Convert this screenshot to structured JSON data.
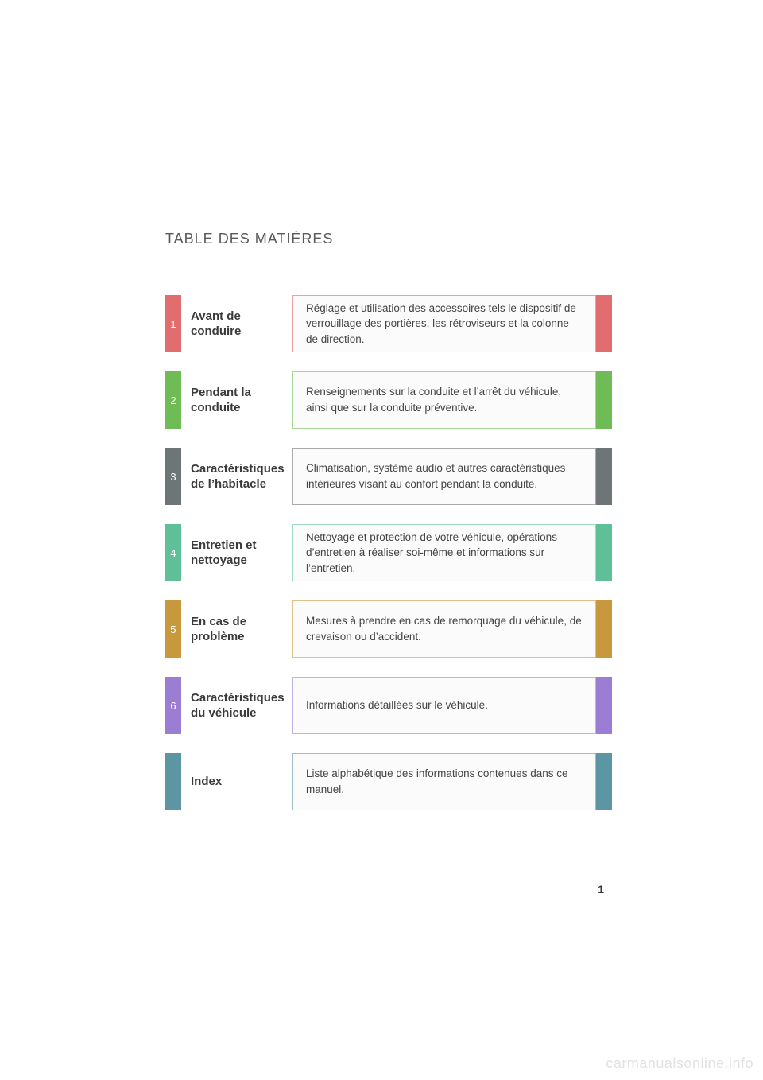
{
  "heading": "TABLE DES MATIÈRES",
  "page_number": "1",
  "watermark": "carmanualsonline.info",
  "rows": [
    {
      "num": "1",
      "title": "Avant de conduire",
      "desc": "Réglage et utilisation des accessoires tels le dispositif de verrouillage des portières, les rétroviseurs et la colonne de direction.",
      "color": "#e26d6e",
      "border": "#e9a1a2"
    },
    {
      "num": "2",
      "title": "Pendant la conduite",
      "desc": "Renseignements sur la conduite et l’arrêt du véhicule, ainsi que sur la conduite préventive.",
      "color": "#6fbb55",
      "border": "#a7d697"
    },
    {
      "num": "3",
      "title": "Caractéristiques de l’habitacle",
      "desc": "Climatisation, système audio et autres caractéristiques intérieures visant au confort pendant la conduite.",
      "color": "#6e7577",
      "border": "#a7abac"
    },
    {
      "num": "4",
      "title": "Entretien et nettoyage",
      "desc": "Nettoyage et protection de votre véhicule, opérations d’entretien à réaliser soi-même et informations sur l’entretien.",
      "color": "#5fbf97",
      "border": "#9ed9c0"
    },
    {
      "num": "5",
      "title": "En cas de problème",
      "desc": "Mesures à prendre en cas de remorquage du véhicule, de crevaison ou d’accident.",
      "color": "#c8983d",
      "border": "#ddc08a"
    },
    {
      "num": "6",
      "title": "Caractéristiques du véhicule",
      "desc": "Informations détaillées sur le véhicule.",
      "color": "#9b7ed4",
      "border": "#c2b1e6"
    },
    {
      "num": "",
      "title": "Index",
      "desc": "Liste alphabétique des informations contenues dans ce manuel.",
      "color": "#5d96a3",
      "border": "#9cbec7"
    }
  ]
}
